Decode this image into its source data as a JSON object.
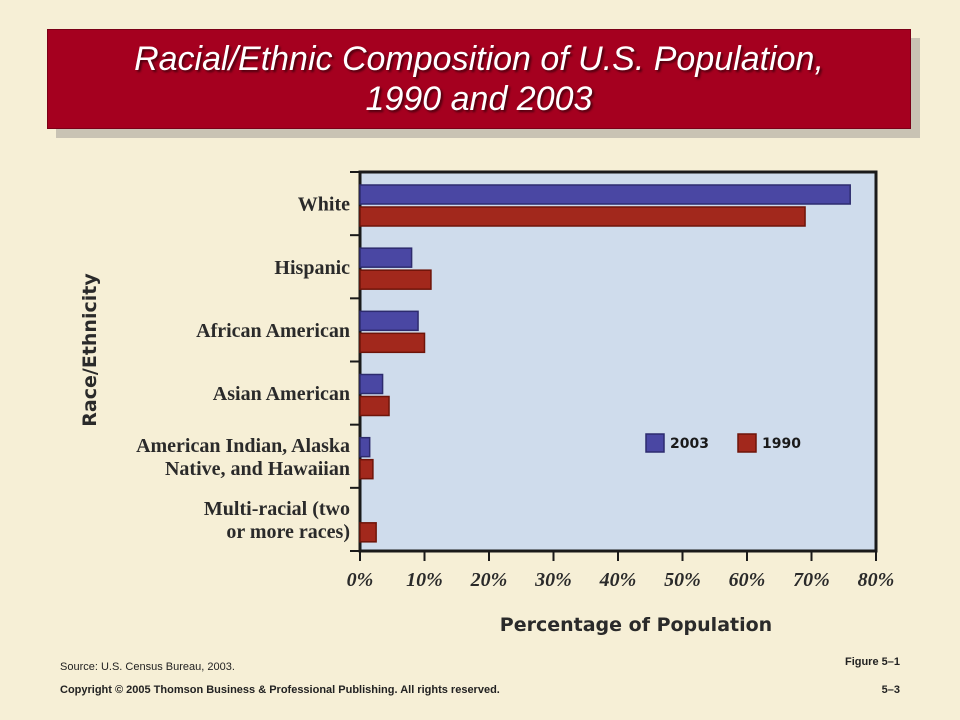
{
  "slide": {
    "title_line1": "Racial/Ethnic Composition of U.S. Population,",
    "title_line2": "1990 and 2003",
    "source": "Source: U.S. Census Bureau, 2003.",
    "figure": "Figure 5–1",
    "copyright": "Copyright © 2005 Thomson Business & Professional Publishing. All rights reserved.",
    "page": "5–3"
  },
  "colors": {
    "title_bg": "#a5001f",
    "plot_bg": "#cfdcec",
    "series_2003": "#4a47a3",
    "series_1990": "#a2281c"
  },
  "chart_data": {
    "type": "bar",
    "orientation": "horizontal",
    "categories": [
      "White",
      "Hispanic",
      "African American",
      "Asian American",
      "American Indian, Alaska Native, and Hawaiian",
      "Multi-racial (two or more races)"
    ],
    "category_lines": [
      [
        "White"
      ],
      [
        "Hispanic"
      ],
      [
        "African American"
      ],
      [
        "Asian American"
      ],
      [
        "American Indian, Alaska",
        "Native, and Hawaiian"
      ],
      [
        "Multi-racial (two",
        "or more races)"
      ]
    ],
    "series": [
      {
        "name": "2003",
        "values": [
          76,
          8,
          9,
          3.5,
          1.5,
          0
        ]
      },
      {
        "name": "1990",
        "values": [
          69,
          11,
          10,
          4.5,
          2,
          2.5
        ]
      }
    ],
    "xlabel": "Percentage of Population",
    "ylabel": "Race/Ethnicity",
    "xlim": [
      0,
      80
    ],
    "xticks": [
      "0%",
      "10%",
      "20%",
      "30%",
      "40%",
      "50%",
      "60%",
      "70%",
      "80%"
    ],
    "legend": [
      "2003",
      "1990"
    ],
    "legend_position": "inside right",
    "grid": false
  }
}
